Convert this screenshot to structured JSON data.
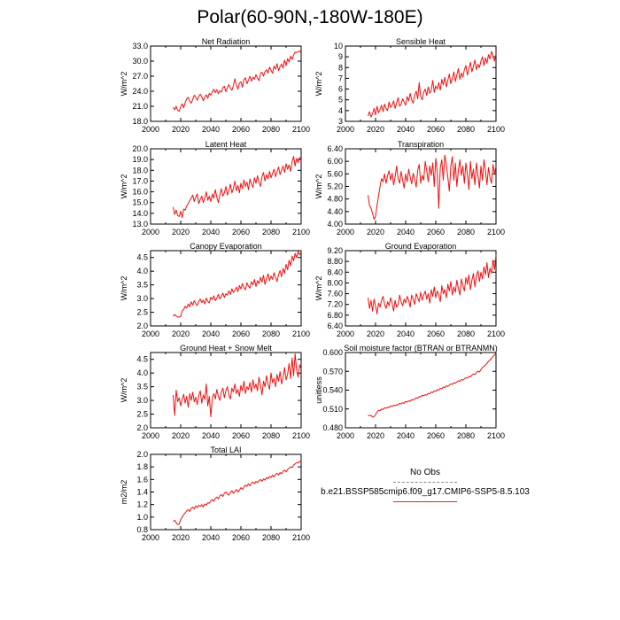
{
  "page_title": "Polar(60-90N,-180W-180E)",
  "legend": {
    "obs_label": "No Obs",
    "model_label": "b.e21.BSSP585cmip6.f09_g17.CMIP6-SSP5-8.5.103",
    "obs_color": "#7f8c8d",
    "model_color": "#ee1111"
  },
  "chart_data": [
    {
      "type": "line",
      "title": "Net Radiation",
      "xlabel": "",
      "ylabel": "W/m^2",
      "xlim": [
        2000,
        2100
      ],
      "ylim": [
        18.0,
        33.0
      ],
      "xticks": [
        "2000",
        "2020",
        "2040",
        "2060",
        "2080",
        "2100"
      ],
      "yticks": [
        "18.0",
        "21.0",
        "24.0",
        "27.0",
        "30.0",
        "33.0"
      ],
      "x_start": 2015,
      "values": [
        20.8,
        20.3,
        21.0,
        20.2,
        20.0,
        20.9,
        21.5,
        20.7,
        21.8,
        22.5,
        22.8,
        22.0,
        21.6,
        22.4,
        23.2,
        22.8,
        22.2,
        23.0,
        23.4,
        22.9,
        22.1,
        22.8,
        23.3,
        22.6,
        23.6,
        23.2,
        23.9,
        24.4,
        23.7,
        24.3,
        23.5,
        24.1,
        23.8,
        24.7,
        25.0,
        23.9,
        24.7,
        25.3,
        24.6,
        24.2,
        25.1,
        26.5,
        25.2,
        24.4,
        25.6,
        25.9,
        24.8,
        26.3,
        26.7,
        25.5,
        26.2,
        27.0,
        26.0,
        26.8,
        26.4,
        27.3,
        26.6,
        26.1,
        27.5,
        27.8,
        27.0,
        27.9,
        28.3,
        27.6,
        28.8,
        28.2,
        27.6,
        29.0,
        28.4,
        29.5,
        28.1,
        28.9,
        29.4,
        28.6,
        30.2,
        29.1,
        30.5,
        29.8,
        31.0,
        30.3,
        31.2,
        31.8,
        31.7,
        31.9,
        32.0,
        31.6
      ]
    },
    {
      "type": "line",
      "title": "Sensible Heat",
      "xlabel": "",
      "ylabel": "W/m^2",
      "xlim": [
        2000,
        2100
      ],
      "ylim": [
        3,
        10
      ],
      "xticks": [
        "2000",
        "2020",
        "2040",
        "2060",
        "2080",
        "2100"
      ],
      "yticks": [
        "3",
        "4",
        "5",
        "6",
        "7",
        "8",
        "9",
        "10"
      ],
      "x_start": 2015,
      "values": [
        3.5,
        3.9,
        3.4,
        3.7,
        4.2,
        3.6,
        4.4,
        3.8,
        4.1,
        4.5,
        3.9,
        4.6,
        4.2,
        4.0,
        4.8,
        4.3,
        4.5,
        4.9,
        4.2,
        4.7,
        5.2,
        4.4,
        4.6,
        5.1,
        4.8,
        4.5,
        5.3,
        4.9,
        5.6,
        5.0,
        4.7,
        5.4,
        5.8,
        5.1,
        6.6,
        5.3,
        5.0,
        5.7,
        6.0,
        5.4,
        6.2,
        5.6,
        5.9,
        6.8,
        5.7,
        6.3,
        6.0,
        6.6,
        5.9,
        6.9,
        6.4,
        7.1,
        6.2,
        6.8,
        7.4,
        6.5,
        7.0,
        7.6,
        6.7,
        7.3,
        7.9,
        6.9,
        7.5,
        7.1,
        7.8,
        8.2,
        7.3,
        7.9,
        8.5,
        7.6,
        8.1,
        8.7,
        7.8,
        8.3,
        8.0,
        8.6,
        9.0,
        8.2,
        8.9,
        8.4,
        9.2,
        8.8,
        9.5,
        9.1,
        8.6,
        9.3
      ]
    },
    {
      "type": "line",
      "title": "Latent Heat",
      "xlabel": "",
      "ylabel": "W/m^2",
      "xlim": [
        2000,
        2100
      ],
      "ylim": [
        13.0,
        20.0
      ],
      "xticks": [
        "2000",
        "2020",
        "2040",
        "2060",
        "2080",
        "2100"
      ],
      "yticks": [
        "13.0",
        "14.0",
        "15.0",
        "16.0",
        "17.0",
        "18.0",
        "19.0",
        "20.0"
      ],
      "x_start": 2015,
      "values": [
        14.6,
        13.9,
        14.3,
        13.8,
        13.7,
        14.2,
        13.6,
        14.4,
        14.3,
        14.7,
        14.9,
        15.2,
        15.4,
        15.7,
        15.1,
        15.5,
        15.8,
        14.9,
        15.3,
        15.6,
        15.0,
        15.4,
        16.0,
        15.2,
        15.6,
        15.1,
        15.8,
        15.4,
        16.2,
        15.5,
        15.0,
        15.7,
        16.3,
        15.6,
        15.9,
        16.5,
        15.7,
        16.1,
        16.7,
        15.9,
        16.3,
        17.0,
        16.1,
        16.6,
        15.9,
        16.8,
        16.3,
        17.1,
        16.5,
        16.9,
        16.2,
        17.2,
        16.7,
        16.4,
        17.3,
        16.8,
        17.5,
        16.9,
        16.5,
        17.4,
        17.8,
        17.0,
        17.6,
        17.2,
        17.9,
        17.3,
        17.7,
        18.1,
        17.4,
        17.9,
        18.3,
        17.6,
        18.0,
        18.4,
        17.8,
        18.6,
        18.1,
        18.5,
        17.9,
        18.8,
        19.3,
        18.4,
        19.1,
        18.7,
        19.2,
        18.9
      ]
    },
    {
      "type": "line",
      "title": "Transpiration",
      "xlabel": "",
      "ylabel": "W/m^2",
      "xlim": [
        2000,
        2100
      ],
      "ylim": [
        4.0,
        6.4
      ],
      "xticks": [
        "2000",
        "2020",
        "2040",
        "2060",
        "2080",
        "2100"
      ],
      "yticks": [
        "4.00",
        "4.40",
        "4.80",
        "5.20",
        "5.60",
        "6.00",
        "6.40"
      ],
      "x_start": 2015,
      "values": [
        4.92,
        4.6,
        4.5,
        4.35,
        4.15,
        4.25,
        4.6,
        4.9,
        5.2,
        5.45,
        5.35,
        5.6,
        5.3,
        5.55,
        5.7,
        5.4,
        5.62,
        5.25,
        5.5,
        5.85,
        5.45,
        5.3,
        5.68,
        5.4,
        5.15,
        5.6,
        5.35,
        5.75,
        5.5,
        5.28,
        5.62,
        5.42,
        5.18,
        5.72,
        5.9,
        5.3,
        5.55,
        5.4,
        6.0,
        5.7,
        5.35,
        5.85,
        5.55,
        5.95,
        5.2,
        6.1,
        5.65,
        4.5,
        5.8,
        6.05,
        5.4,
        6.2,
        5.9,
        5.5,
        5.05,
        5.85,
        6.15,
        5.4,
        5.95,
        5.2,
        5.7,
        6.05,
        5.55,
        5.85,
        5.3,
        5.95,
        5.6,
        5.1,
        6.0,
        5.45,
        5.75,
        5.25,
        5.95,
        5.55,
        5.15,
        5.85,
        5.4,
        6.05,
        5.7,
        5.25,
        5.8,
        5.5,
        5.3,
        5.9,
        5.6,
        5.85
      ]
    },
    {
      "type": "line",
      "title": "Canopy Evaporation",
      "xlabel": "",
      "ylabel": "W/m^2",
      "xlim": [
        2000,
        2100
      ],
      "ylim": [
        2.0,
        4.75
      ],
      "xticks": [
        "2000",
        "2020",
        "2040",
        "2060",
        "2080",
        "2100"
      ],
      "yticks": [
        "2.0",
        "2.5",
        "3.0",
        "3.5",
        "4.0",
        "4.5"
      ],
      "x_start": 2015,
      "values": [
        2.35,
        2.42,
        2.36,
        2.33,
        2.32,
        2.35,
        2.55,
        2.6,
        2.72,
        2.65,
        2.8,
        2.7,
        2.88,
        2.76,
        2.92,
        2.82,
        2.74,
        2.9,
        2.98,
        2.85,
        2.95,
        2.8,
        3.02,
        2.9,
        2.84,
        3.05,
        2.96,
        3.1,
        2.92,
        3.02,
        3.15,
        2.98,
        3.08,
        3.2,
        3.04,
        3.18,
        3.12,
        3.28,
        3.15,
        3.36,
        3.22,
        3.3,
        3.42,
        3.25,
        3.48,
        3.35,
        3.55,
        3.4,
        3.32,
        3.58,
        3.45,
        3.38,
        3.62,
        3.5,
        3.7,
        3.44,
        3.65,
        3.55,
        3.78,
        3.6,
        3.85,
        3.52,
        3.72,
        3.9,
        3.65,
        3.82,
        3.7,
        3.95,
        3.78,
        3.62,
        3.88,
        4.02,
        3.8,
        4.1,
        3.92,
        4.25,
        4.05,
        4.4,
        4.2,
        4.55,
        4.38,
        4.65,
        4.5,
        4.72,
        4.6,
        4.68
      ]
    },
    {
      "type": "line",
      "title": "Ground Evaporation",
      "xlabel": "",
      "ylabel": "W/m^2",
      "xlim": [
        2000,
        2100
      ],
      "ylim": [
        6.4,
        9.2
      ],
      "xticks": [
        "2000",
        "2020",
        "2040",
        "2060",
        "2080",
        "2100"
      ],
      "yticks": [
        "6.40",
        "6.80",
        "7.20",
        "7.60",
        "8.00",
        "8.40",
        "8.80",
        "9.20"
      ],
      "x_start": 2015,
      "values": [
        7.45,
        7.05,
        7.35,
        6.95,
        7.4,
        7.15,
        6.85,
        7.25,
        7.1,
        7.35,
        7.5,
        7.2,
        7.05,
        7.3,
        7.15,
        7.45,
        7.25,
        6.95,
        7.35,
        7.1,
        7.2,
        7.55,
        7.3,
        7.15,
        7.4,
        7.25,
        7.5,
        7.35,
        7.1,
        7.55,
        7.4,
        7.2,
        7.6,
        7.45,
        7.3,
        7.65,
        7.35,
        7.55,
        7.7,
        7.4,
        7.6,
        7.25,
        7.75,
        7.5,
        7.85,
        7.45,
        7.7,
        7.55,
        7.3,
        7.9,
        7.6,
        7.75,
        7.45,
        7.95,
        7.7,
        8.05,
        7.55,
        7.85,
        7.65,
        8.1,
        7.8,
        7.55,
        8.15,
        7.9,
        7.7,
        8.2,
        7.95,
        8.3,
        7.75,
        8.1,
        8.35,
        7.85,
        8.25,
        8.45,
        8.05,
        8.4,
        8.15,
        8.6,
        8.3,
        8.75,
        8.2,
        8.55,
        8.35,
        8.85,
        8.5,
        9.05
      ]
    },
    {
      "type": "line",
      "title": "Ground Heat + Snow Melt",
      "xlabel": "",
      "ylabel": "W/m^2",
      "xlim": [
        2000,
        2100
      ],
      "ylim": [
        2.0,
        4.75
      ],
      "xticks": [
        "2000",
        "2020",
        "2040",
        "2060",
        "2080",
        "2100"
      ],
      "yticks": [
        "2.0",
        "2.5",
        "3.0",
        "3.5",
        "4.0",
        "4.5"
      ],
      "x_start": 2015,
      "values": [
        3.2,
        2.45,
        3.38,
        2.95,
        3.1,
        2.8,
        3.05,
        3.22,
        2.9,
        3.15,
        2.75,
        3.25,
        3.0,
        3.3,
        2.95,
        3.12,
        2.85,
        3.18,
        3.35,
        2.9,
        3.2,
        3.05,
        3.6,
        2.8,
        3.15,
        2.4,
        3.1,
        3.25,
        3.05,
        3.4,
        3.15,
        3.0,
        3.3,
        3.45,
        3.1,
        3.35,
        3.5,
        3.2,
        3.05,
        3.45,
        3.3,
        3.6,
        3.25,
        3.4,
        3.15,
        3.55,
        3.35,
        3.7,
        3.25,
        3.5,
        3.4,
        3.65,
        3.3,
        3.75,
        3.45,
        3.6,
        3.35,
        3.85,
        3.55,
        3.2,
        3.7,
        3.5,
        3.9,
        3.6,
        3.4,
        4.0,
        3.65,
        3.8,
        3.5,
        3.95,
        3.7,
        4.05,
        3.6,
        3.85,
        4.2,
        3.75,
        3.95,
        4.35,
        3.8,
        4.55,
        3.9,
        4.7,
        4.1,
        3.85,
        4.3,
        4.15
      ]
    },
    {
      "type": "line",
      "title": "Soil moisture factor (BTRAN or BTRANMN)",
      "xlabel": "",
      "ylabel": "unitless",
      "xlim": [
        2000,
        2100
      ],
      "ylim": [
        0.48,
        0.6
      ],
      "xticks": [
        "2000",
        "2020",
        "2040",
        "2060",
        "2080",
        "2100"
      ],
      "yticks": [
        "0.480",
        "0.510",
        "0.540",
        "0.570",
        "0.600"
      ],
      "x_start": 2015,
      "values": [
        0.5,
        0.499,
        0.5,
        0.497,
        0.498,
        0.501,
        0.505,
        0.508,
        0.507,
        0.51,
        0.509,
        0.512,
        0.511,
        0.513,
        0.512,
        0.515,
        0.514,
        0.516,
        0.515,
        0.517,
        0.516,
        0.519,
        0.518,
        0.52,
        0.519,
        0.522,
        0.521,
        0.523,
        0.522,
        0.525,
        0.524,
        0.526,
        0.528,
        0.527,
        0.53,
        0.529,
        0.532,
        0.531,
        0.533,
        0.532,
        0.535,
        0.534,
        0.537,
        0.536,
        0.539,
        0.538,
        0.541,
        0.54,
        0.543,
        0.542,
        0.545,
        0.544,
        0.547,
        0.546,
        0.548,
        0.55,
        0.549,
        0.552,
        0.551,
        0.553,
        0.555,
        0.554,
        0.557,
        0.556,
        0.558,
        0.56,
        0.559,
        0.562,
        0.561,
        0.564,
        0.566,
        0.565,
        0.568,
        0.57,
        0.569,
        0.573,
        0.576,
        0.578,
        0.58,
        0.583,
        0.586,
        0.588,
        0.591,
        0.594,
        0.596,
        0.599
      ]
    },
    {
      "type": "line",
      "title": "Total LAI",
      "xlabel": "",
      "ylabel": "m2/m2",
      "xlim": [
        2000,
        2100
      ],
      "ylim": [
        0.8,
        2.0
      ],
      "xticks": [
        "2000",
        "2020",
        "2040",
        "2060",
        "2080",
        "2100"
      ],
      "yticks": [
        "0.8",
        "1.0",
        "1.2",
        "1.4",
        "1.6",
        "1.8",
        "2.0"
      ],
      "x_start": 2015,
      "values": [
        0.93,
        0.95,
        0.91,
        0.88,
        0.89,
        0.96,
        1.0,
        1.04,
        1.07,
        1.1,
        1.12,
        1.09,
        1.14,
        1.16,
        1.13,
        1.18,
        1.15,
        1.19,
        1.17,
        1.2,
        1.16,
        1.21,
        1.19,
        1.23,
        1.22,
        1.26,
        1.28,
        1.25,
        1.3,
        1.32,
        1.29,
        1.34,
        1.36,
        1.33,
        1.38,
        1.4,
        1.37,
        1.35,
        1.39,
        1.42,
        1.38,
        1.41,
        1.44,
        1.4,
        1.43,
        1.47,
        1.44,
        1.48,
        1.51,
        1.49,
        1.53,
        1.5,
        1.54,
        1.56,
        1.53,
        1.57,
        1.55,
        1.58,
        1.6,
        1.57,
        1.61,
        1.59,
        1.63,
        1.61,
        1.65,
        1.63,
        1.67,
        1.64,
        1.68,
        1.7,
        1.67,
        1.71,
        1.69,
        1.73,
        1.75,
        1.72,
        1.76,
        1.78,
        1.8,
        1.79,
        1.83,
        1.85,
        1.87,
        1.86,
        1.89,
        1.88
      ]
    }
  ]
}
